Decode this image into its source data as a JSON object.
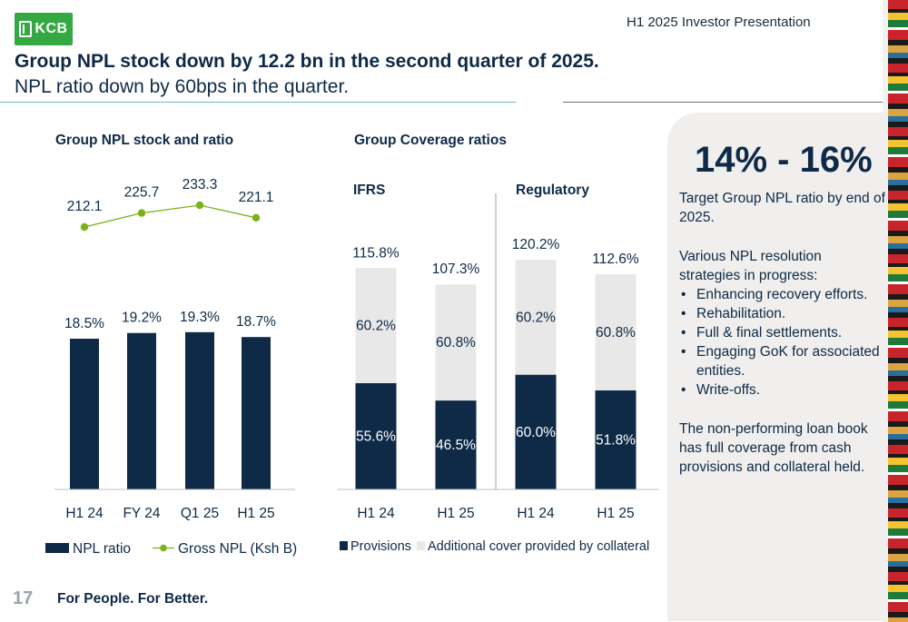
{
  "header": {
    "logo_text": "KCB",
    "presentation": "H1 2025 Investor Presentation"
  },
  "title": "Group NPL stock down by 12.2 bn in the second quarter of 2025.",
  "subtitle": "NPL ratio down by 60bps in the quarter.",
  "side_panel": {
    "range": "14% - 16%",
    "target": "Target Group NPL ratio by end of 2025.",
    "strategies_intro": "Various NPL resolution strategies in progress:",
    "strategies": [
      "Enhancing recovery efforts.",
      "Rehabilitation.",
      "Full & final settlements.",
      "Engaging GoK for associated entities.",
      "Write-offs."
    ],
    "closing": "The non-performing loan book has full coverage from cash provisions and collateral held."
  },
  "footer": {
    "page_number": "17",
    "tagline": "For People. For Better."
  },
  "colors": {
    "navy": "#0e2a47",
    "green": "#7ab317",
    "light_grey": "#e8e8e8",
    "brand_green": "#33a843"
  },
  "chart_data": [
    {
      "type": "bar",
      "title": "Group NPL stock and ratio",
      "categories": [
        "H1 24",
        "FY 24",
        "Q1 25",
        "H1 25"
      ],
      "series": [
        {
          "name": "NPL ratio",
          "type": "bar",
          "values": [
            18.5,
            19.2,
            19.3,
            18.7
          ],
          "labels": [
            "18.5%",
            "19.2%",
            "19.3%",
            "18.7%"
          ]
        },
        {
          "name": "Gross NPL (Ksh B)",
          "type": "line",
          "values": [
            212.1,
            225.7,
            233.3,
            221.1
          ],
          "labels": [
            "212.1",
            "225.7",
            "233.3",
            "221.1"
          ]
        }
      ],
      "legend_position": "bottom"
    },
    {
      "type": "bar",
      "stacked": true,
      "title": "Group Coverage ratios",
      "groups": [
        "IFRS",
        "Regulatory"
      ],
      "categories": [
        "H1 24",
        "H1 25",
        "H1 24",
        "H1 25"
      ],
      "series": [
        {
          "name": "Provisions",
          "values": [
            55.6,
            46.5,
            60.0,
            51.8
          ],
          "labels": [
            "55.6%",
            "46.5%",
            "60.0%",
            "51.8%"
          ]
        },
        {
          "name": "Additional cover provided by collateral",
          "values": [
            60.2,
            60.8,
            60.2,
            60.8
          ],
          "labels": [
            "60.2%",
            "60.8%",
            "60.2%",
            "60.8%"
          ]
        }
      ],
      "totals": [
        115.8,
        107.3,
        120.2,
        112.6
      ],
      "total_labels": [
        "115.8%",
        "107.3%",
        "120.2%",
        "112.6%"
      ],
      "legend_position": "bottom"
    }
  ]
}
